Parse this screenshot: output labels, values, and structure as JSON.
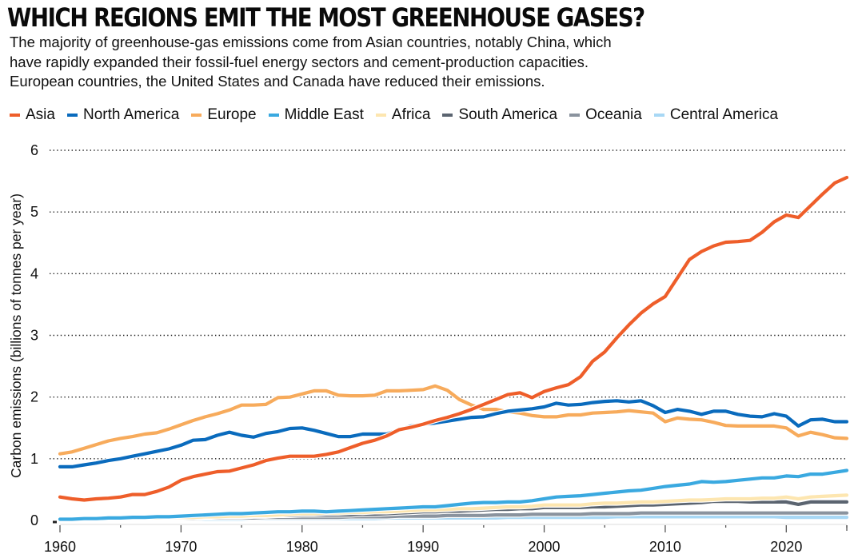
{
  "header": {
    "title": "WHICH REGIONS EMIT THE MOST GREENHOUSE GASES?",
    "subtitle_lines": [
      "The majority of greenhouse-gas emissions come from Asian countries, notably China, which",
      "have rapidly expanded their fossil-fuel energy sectors and cement-production capacities.",
      "European countries, the United States and Canada have reduced their emissions."
    ]
  },
  "chart_data": {
    "type": "line",
    "title": "WHICH REGIONS EMIT THE MOST GREENHOUSE GASES?",
    "xlabel": "",
    "ylabel": "Carbon emissions (billions of tonnes per year)",
    "xlim": [
      1960,
      2025
    ],
    "ylim": [
      0,
      6
    ],
    "x_ticks": [
      1960,
      1970,
      1980,
      1990,
      2000,
      2010,
      2020
    ],
    "x_tick_labels": [
      "1960",
      "1970",
      "1980",
      "1990",
      "2000",
      "2010",
      "2020"
    ],
    "y_ticks": [
      0,
      1,
      2,
      3,
      4,
      5,
      6
    ],
    "y_tick_labels": [
      "0",
      "1",
      "2",
      "3",
      "4",
      "5",
      "6"
    ],
    "grid": "horizontal dotted",
    "legend_position": "top",
    "x": [
      1960,
      1961,
      1962,
      1963,
      1964,
      1965,
      1966,
      1967,
      1968,
      1969,
      1970,
      1971,
      1972,
      1973,
      1974,
      1975,
      1976,
      1977,
      1978,
      1979,
      1980,
      1981,
      1982,
      1983,
      1984,
      1985,
      1986,
      1987,
      1988,
      1989,
      1990,
      1991,
      1992,
      1993,
      1994,
      1995,
      1996,
      1997,
      1998,
      1999,
      2000,
      2001,
      2002,
      2003,
      2004,
      2005,
      2006,
      2007,
      2008,
      2009,
      2010,
      2011,
      2012,
      2013,
      2014,
      2015,
      2016,
      2017,
      2018,
      2019,
      2020,
      2021,
      2022,
      2023,
      2024,
      2025
    ],
    "series": [
      {
        "name": "Central America",
        "color": "#a8d8f5",
        "values": [
          0.01,
          0.01,
          0.01,
          0.01,
          0.01,
          0.01,
          0.01,
          0.01,
          0.02,
          0.02,
          0.02,
          0.02,
          0.02,
          0.02,
          0.02,
          0.02,
          0.03,
          0.03,
          0.03,
          0.03,
          0.03,
          0.03,
          0.03,
          0.03,
          0.03,
          0.03,
          0.03,
          0.04,
          0.04,
          0.04,
          0.04,
          0.04,
          0.04,
          0.04,
          0.04,
          0.04,
          0.04,
          0.05,
          0.05,
          0.05,
          0.05,
          0.05,
          0.05,
          0.05,
          0.05,
          0.05,
          0.06,
          0.06,
          0.06,
          0.06,
          0.06,
          0.06,
          0.06,
          0.06,
          0.06,
          0.06,
          0.06,
          0.06,
          0.06,
          0.06,
          0.05,
          0.05,
          0.05,
          0.05,
          0.05,
          0.05
        ]
      },
      {
        "name": "Oceania",
        "color": "#8a939e",
        "values": [
          0.01,
          0.01,
          0.01,
          0.02,
          0.02,
          0.02,
          0.02,
          0.02,
          0.03,
          0.03,
          0.03,
          0.03,
          0.04,
          0.04,
          0.04,
          0.04,
          0.04,
          0.05,
          0.05,
          0.05,
          0.05,
          0.05,
          0.05,
          0.05,
          0.06,
          0.06,
          0.06,
          0.06,
          0.07,
          0.07,
          0.07,
          0.07,
          0.08,
          0.08,
          0.08,
          0.08,
          0.09,
          0.09,
          0.09,
          0.1,
          0.1,
          0.1,
          0.1,
          0.1,
          0.11,
          0.11,
          0.11,
          0.11,
          0.12,
          0.12,
          0.12,
          0.12,
          0.12,
          0.12,
          0.12,
          0.12,
          0.12,
          0.12,
          0.12,
          0.12,
          0.12,
          0.12,
          0.12,
          0.12,
          0.12,
          0.12
        ]
      },
      {
        "name": "South America",
        "color": "#5b6470",
        "values": [
          0.02,
          0.02,
          0.02,
          0.02,
          0.03,
          0.03,
          0.03,
          0.03,
          0.04,
          0.04,
          0.04,
          0.05,
          0.05,
          0.06,
          0.06,
          0.06,
          0.07,
          0.07,
          0.08,
          0.08,
          0.09,
          0.09,
          0.09,
          0.09,
          0.09,
          0.1,
          0.1,
          0.11,
          0.12,
          0.13,
          0.14,
          0.14,
          0.15,
          0.15,
          0.16,
          0.17,
          0.18,
          0.18,
          0.19,
          0.19,
          0.21,
          0.21,
          0.21,
          0.21,
          0.22,
          0.22,
          0.23,
          0.24,
          0.25,
          0.25,
          0.26,
          0.27,
          0.28,
          0.29,
          0.31,
          0.31,
          0.31,
          0.3,
          0.3,
          0.3,
          0.3,
          0.26,
          0.3,
          0.3,
          0.3,
          0.3
        ]
      },
      {
        "name": "Africa",
        "color": "#fde6b0",
        "values": [
          0.02,
          0.02,
          0.02,
          0.03,
          0.03,
          0.03,
          0.04,
          0.04,
          0.04,
          0.05,
          0.05,
          0.05,
          0.06,
          0.06,
          0.07,
          0.07,
          0.08,
          0.08,
          0.09,
          0.1,
          0.11,
          0.11,
          0.12,
          0.12,
          0.13,
          0.13,
          0.14,
          0.14,
          0.15,
          0.16,
          0.17,
          0.17,
          0.18,
          0.19,
          0.19,
          0.2,
          0.21,
          0.22,
          0.22,
          0.23,
          0.25,
          0.25,
          0.25,
          0.25,
          0.27,
          0.28,
          0.28,
          0.29,
          0.3,
          0.3,
          0.31,
          0.32,
          0.33,
          0.33,
          0.34,
          0.35,
          0.35,
          0.35,
          0.36,
          0.36,
          0.38,
          0.35,
          0.38,
          0.39,
          0.4,
          0.41
        ]
      },
      {
        "name": "Middle East",
        "color": "#3aa9e0",
        "values": [
          0.02,
          0.02,
          0.03,
          0.03,
          0.04,
          0.04,
          0.05,
          0.05,
          0.06,
          0.06,
          0.07,
          0.08,
          0.09,
          0.1,
          0.11,
          0.11,
          0.12,
          0.13,
          0.14,
          0.14,
          0.15,
          0.15,
          0.14,
          0.15,
          0.16,
          0.17,
          0.18,
          0.19,
          0.2,
          0.21,
          0.22,
          0.22,
          0.24,
          0.26,
          0.28,
          0.29,
          0.29,
          0.3,
          0.3,
          0.32,
          0.35,
          0.38,
          0.39,
          0.4,
          0.42,
          0.44,
          0.46,
          0.48,
          0.49,
          0.52,
          0.55,
          0.57,
          0.59,
          0.63,
          0.62,
          0.63,
          0.65,
          0.67,
          0.69,
          0.69,
          0.72,
          0.71,
          0.75,
          0.75,
          0.78,
          0.81
        ]
      },
      {
        "name": "Europe",
        "color": "#f7ab5c",
        "values": [
          1.08,
          1.11,
          1.17,
          1.23,
          1.29,
          1.33,
          1.36,
          1.4,
          1.42,
          1.48,
          1.55,
          1.62,
          1.68,
          1.73,
          1.79,
          1.87,
          1.87,
          1.88,
          1.99,
          2.0,
          2.05,
          2.1,
          2.1,
          2.03,
          2.02,
          2.02,
          2.03,
          2.1,
          2.1,
          2.11,
          2.12,
          2.18,
          2.11,
          1.96,
          1.87,
          1.8,
          1.8,
          1.76,
          1.74,
          1.7,
          1.68,
          1.68,
          1.71,
          1.71,
          1.74,
          1.75,
          1.76,
          1.78,
          1.76,
          1.74,
          1.6,
          1.66,
          1.64,
          1.63,
          1.59,
          1.54,
          1.53,
          1.53,
          1.53,
          1.53,
          1.5,
          1.37,
          1.43,
          1.39,
          1.34,
          1.33
        ]
      },
      {
        "name": "North America",
        "color": "#0a6bbd",
        "values": [
          0.87,
          0.87,
          0.9,
          0.93,
          0.97,
          1.0,
          1.04,
          1.08,
          1.12,
          1.16,
          1.22,
          1.3,
          1.31,
          1.38,
          1.43,
          1.38,
          1.35,
          1.41,
          1.44,
          1.49,
          1.5,
          1.46,
          1.41,
          1.36,
          1.36,
          1.4,
          1.4,
          1.4,
          1.47,
          1.53,
          1.56,
          1.58,
          1.61,
          1.64,
          1.67,
          1.68,
          1.73,
          1.77,
          1.79,
          1.81,
          1.84,
          1.9,
          1.87,
          1.88,
          1.91,
          1.93,
          1.94,
          1.92,
          1.94,
          1.86,
          1.75,
          1.8,
          1.77,
          1.72,
          1.77,
          1.77,
          1.72,
          1.69,
          1.68,
          1.73,
          1.69,
          1.53,
          1.63,
          1.64,
          1.6,
          1.6
        ]
      },
      {
        "name": "Asia",
        "color": "#ee5e2a",
        "values": [
          0.38,
          0.35,
          0.33,
          0.35,
          0.36,
          0.38,
          0.42,
          0.42,
          0.47,
          0.54,
          0.65,
          0.71,
          0.75,
          0.79,
          0.8,
          0.85,
          0.9,
          0.97,
          1.01,
          1.04,
          1.04,
          1.04,
          1.07,
          1.11,
          1.18,
          1.25,
          1.3,
          1.37,
          1.47,
          1.51,
          1.56,
          1.62,
          1.67,
          1.73,
          1.8,
          1.88,
          1.96,
          2.04,
          2.07,
          1.99,
          2.09,
          2.15,
          2.2,
          2.33,
          2.58,
          2.73,
          2.96,
          3.17,
          3.36,
          3.51,
          3.63,
          3.93,
          4.23,
          4.36,
          4.45,
          4.51,
          4.52,
          4.54,
          4.67,
          4.84,
          4.95,
          4.91,
          5.1,
          5.29,
          5.47,
          5.56
        ]
      }
    ],
    "legend": [
      {
        "name": "Asia",
        "color": "#ee5e2a"
      },
      {
        "name": "North America",
        "color": "#0a6bbd"
      },
      {
        "name": "Europe",
        "color": "#f7ab5c"
      },
      {
        "name": "Middle East",
        "color": "#3aa9e0"
      },
      {
        "name": "Africa",
        "color": "#fde6b0"
      },
      {
        "name": "South America",
        "color": "#5b6470"
      },
      {
        "name": "Oceania",
        "color": "#8a939e"
      },
      {
        "name": "Central America",
        "color": "#a8d8f5"
      }
    ]
  }
}
